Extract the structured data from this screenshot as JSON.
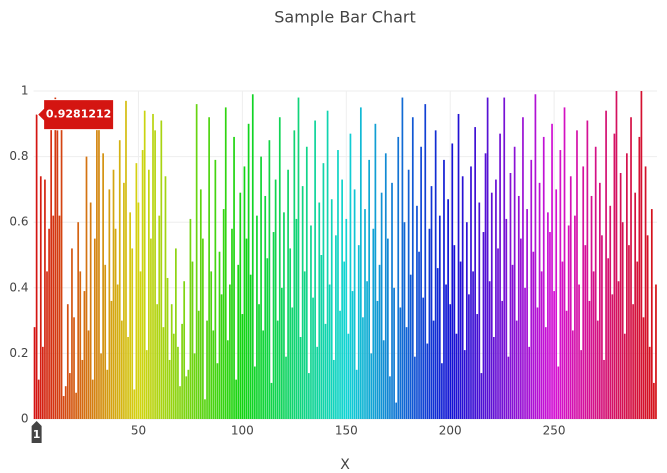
{
  "chart_data": {
    "type": "bar",
    "title": "Sample Bar Chart",
    "x_label": "X",
    "colorscale": "hue",
    "x": [
      0,
      1,
      2,
      3,
      4,
      5,
      6,
      7,
      8,
      9,
      10,
      11,
      12,
      13,
      14,
      15,
      16,
      17,
      18,
      19,
      20,
      21,
      22,
      23,
      24,
      25,
      26,
      27,
      28,
      29,
      30,
      31,
      32,
      33,
      34,
      35,
      36,
      37,
      38,
      39,
      40,
      41,
      42,
      43,
      44,
      45,
      46,
      47,
      48,
      49,
      50,
      51,
      52,
      53,
      54,
      55,
      56,
      57,
      58,
      59,
      60,
      61,
      62,
      63,
      64,
      65,
      66,
      67,
      68,
      69,
      70,
      71,
      72,
      73,
      74,
      75,
      76,
      77,
      78,
      79,
      80,
      81,
      82,
      83,
      84,
      85,
      86,
      87,
      88,
      89,
      90,
      91,
      92,
      93,
      94,
      95,
      96,
      97,
      98,
      99,
      100,
      101,
      102,
      103,
      104,
      105,
      106,
      107,
      108,
      109,
      110,
      111,
      112,
      113,
      114,
      115,
      116,
      117,
      118,
      119,
      120,
      121,
      122,
      123,
      124,
      125,
      126,
      127,
      128,
      129,
      130,
      131,
      132,
      133,
      134,
      135,
      136,
      137,
      138,
      139,
      140,
      141,
      142,
      143,
      144,
      145,
      146,
      147,
      148,
      149,
      150,
      151,
      152,
      153,
      154,
      155,
      156,
      157,
      158,
      159,
      160,
      161,
      162,
      163,
      164,
      165,
      166,
      167,
      168,
      169,
      170,
      171,
      172,
      173,
      174,
      175,
      176,
      177,
      178,
      179,
      180,
      181,
      182,
      183,
      184,
      185,
      186,
      187,
      188,
      189,
      190,
      191,
      192,
      193,
      194,
      195,
      196,
      197,
      198,
      199,
      200,
      201,
      202,
      203,
      204,
      205,
      206,
      207,
      208,
      209,
      210,
      211,
      212,
      213,
      214,
      215,
      216,
      217,
      218,
      219,
      220,
      221,
      222,
      223,
      224,
      225,
      226,
      227,
      228,
      229,
      230,
      231,
      232,
      233,
      234,
      235,
      236,
      237,
      238,
      239,
      240,
      241,
      242,
      243,
      244,
      245,
      246,
      247,
      248,
      249,
      250,
      251,
      252,
      253,
      254,
      255,
      256,
      257,
      258,
      259,
      260,
      261,
      262,
      263,
      264,
      265,
      266,
      267,
      268,
      269,
      270,
      271,
      272,
      273,
      274,
      275,
      276,
      277,
      278,
      279,
      280,
      281,
      282,
      283,
      284,
      285,
      286,
      287,
      288,
      289,
      290,
      291,
      292,
      293,
      294,
      295,
      296,
      297,
      298,
      299
    ],
    "values": [
      0.28,
      0.9281212,
      0.12,
      0.74,
      0.22,
      0.73,
      0.45,
      0.58,
      0.97,
      0.62,
      0.98,
      0.88,
      0.62,
      0.95,
      0.07,
      0.1,
      0.35,
      0.14,
      0.52,
      0.31,
      0.08,
      0.6,
      0.45,
      0.18,
      0.39,
      0.8,
      0.27,
      0.66,
      0.12,
      0.55,
      0.89,
      0.93,
      0.2,
      0.81,
      0.47,
      0.15,
      0.7,
      0.36,
      0.76,
      0.58,
      0.41,
      0.85,
      0.3,
      0.72,
      0.97,
      0.25,
      0.63,
      0.52,
      0.09,
      0.78,
      0.66,
      0.45,
      0.82,
      0.94,
      0.21,
      0.76,
      0.55,
      0.93,
      0.88,
      0.35,
      0.62,
      0.91,
      0.28,
      0.74,
      0.43,
      0.18,
      0.35,
      0.26,
      0.52,
      0.22,
      0.1,
      0.29,
      0.42,
      0.13,
      0.15,
      0.61,
      0.48,
      0.2,
      0.96,
      0.33,
      0.7,
      0.55,
      0.06,
      0.3,
      0.92,
      0.45,
      0.27,
      0.79,
      0.17,
      0.51,
      0.38,
      0.64,
      0.95,
      0.24,
      0.41,
      0.58,
      0.86,
      0.12,
      0.47,
      0.69,
      0.32,
      0.77,
      0.55,
      0.9,
      0.44,
      0.99,
      0.16,
      0.62,
      0.35,
      0.8,
      0.27,
      0.68,
      0.49,
      0.85,
      0.11,
      0.57,
      0.73,
      0.3,
      0.92,
      0.4,
      0.63,
      0.19,
      0.76,
      0.52,
      0.34,
      0.88,
      0.61,
      0.98,
      0.25,
      0.71,
      0.45,
      0.83,
      0.14,
      0.59,
      0.37,
      0.91,
      0.22,
      0.66,
      0.5,
      0.78,
      0.29,
      0.94,
      0.41,
      0.67,
      0.18,
      0.56,
      0.82,
      0.33,
      0.73,
      0.48,
      0.61,
      0.26,
      0.87,
      0.39,
      0.7,
      0.15,
      0.53,
      0.95,
      0.31,
      0.64,
      0.42,
      0.79,
      0.2,
      0.58,
      0.9,
      0.36,
      0.47,
      0.69,
      0.24,
      0.81,
      0.55,
      0.13,
      0.72,
      0.4,
      0.05,
      0.86,
      0.34,
      0.98,
      0.6,
      0.28,
      0.76,
      0.44,
      0.92,
      0.19,
      0.65,
      0.51,
      0.83,
      0.37,
      0.96,
      0.23,
      0.58,
      0.71,
      0.3,
      0.88,
      0.46,
      0.62,
      0.17,
      0.79,
      0.41,
      0.67,
      0.35,
      0.84,
      0.53,
      0.26,
      0.93,
      0.48,
      0.74,
      0.21,
      0.6,
      0.38,
      0.77,
      0.45,
      0.89,
      0.32,
      0.66,
      0.14,
      0.57,
      0.81,
      0.98,
      0.42,
      0.69,
      0.25,
      0.73,
      0.52,
      0.87,
      0.36,
      0.98,
      0.61,
      0.19,
      0.75,
      0.47,
      0.83,
      0.3,
      0.68,
      0.55,
      0.92,
      0.4,
      0.64,
      0.22,
      0.79,
      0.51,
      0.99,
      0.34,
      0.72,
      0.45,
      0.86,
      0.28,
      0.63,
      0.57,
      0.9,
      0.39,
      0.7,
      0.16,
      0.82,
      0.48,
      0.95,
      0.33,
      0.59,
      0.74,
      0.27,
      0.62,
      0.88,
      0.41,
      0.21,
      0.77,
      0.53,
      0.91,
      0.36,
      0.68,
      0.45,
      0.83,
      0.3,
      0.72,
      0.56,
      0.18,
      0.94,
      0.49,
      0.65,
      0.38,
      0.87,
      1.0,
      0.42,
      0.75,
      0.6,
      0.26,
      0.81,
      0.53,
      0.92,
      0.35,
      0.69,
      0.48,
      0.86,
      1.0,
      0.31,
      0.77,
      0.56,
      0.22,
      0.64,
      0.11,
      0.41
    ],
    "xlim": [
      -0.5,
      299.5
    ],
    "xticks": [
      50,
      100,
      150,
      200,
      250
    ],
    "ylim": [
      0,
      1
    ],
    "yticks": [
      0,
      0.2,
      0.4,
      0.6,
      0.8,
      1
    ],
    "grid": true,
    "hover": {
      "index": 1
    }
  }
}
